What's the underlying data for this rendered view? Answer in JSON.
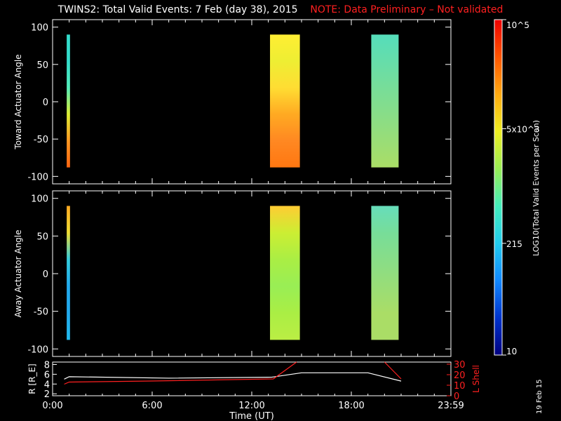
{
  "title": {
    "main": "TWINS2: Total Valid Events:  7 Feb (day  38), 2015",
    "note": "NOTE: Data Preliminary – Not validated"
  },
  "datestamp": "19 Feb 15",
  "colors": {
    "background": "#000000",
    "axes": "#ffffff",
    "note": "#ff2020",
    "lshell": "#ff2020",
    "radius": "#ffffff"
  },
  "chart_data": [
    {
      "type": "heatmap",
      "panel": "toward",
      "ylabel": "Toward Actuator Angle",
      "ylim": [
        -110,
        110
      ],
      "yticks": [
        "100",
        "50",
        "0",
        "-50",
        "-100"
      ],
      "xlim": [
        0,
        24
      ],
      "grid": false,
      "blocks": [
        {
          "t0": 0.85,
          "t1": 1.05,
          "angle_min": -88,
          "angle_max": 90,
          "colors_top_to_bottom": [
            "#33ddcc",
            "#33ddcc",
            "#55eebb",
            "#ddee33",
            "#ff9922",
            "#ff6611"
          ]
        },
        {
          "t0": 13.1,
          "t1": 14.9,
          "angle_min": -88,
          "angle_max": 90,
          "colors_top_to_bottom": [
            "#ffee33",
            "#eeee33",
            "#ffdd33",
            "#ffaa22",
            "#ff8822",
            "#ff7711"
          ]
        },
        {
          "t0": 19.2,
          "t1": 20.85,
          "angle_min": -88,
          "angle_max": 90,
          "colors_top_to_bottom": [
            "#55ddbb",
            "#66ddaa",
            "#77dd99",
            "#88dd88",
            "#99dd77",
            "#aadd66"
          ]
        }
      ]
    },
    {
      "type": "heatmap",
      "panel": "away",
      "ylabel": "Away Actuator Angle",
      "ylim": [
        -110,
        110
      ],
      "yticks": [
        "100",
        "50",
        "0",
        "-50",
        "-100"
      ],
      "xlim": [
        0,
        24
      ],
      "grid": false,
      "blocks": [
        {
          "t0": 0.85,
          "t1": 1.05,
          "angle_min": -88,
          "angle_max": 90,
          "colors_top_to_bottom": [
            "#ffaa22",
            "#eedd33",
            "#33ccdd",
            "#22aaee",
            "#22aaee",
            "#22bbee"
          ]
        },
        {
          "t0": 13.1,
          "t1": 14.9,
          "angle_min": -88,
          "angle_max": 90,
          "colors_top_to_bottom": [
            "#ffcc33",
            "#ccee33",
            "#aaee44",
            "#99ee55",
            "#aaee44",
            "#bbee44"
          ]
        },
        {
          "t0": 19.2,
          "t1": 20.85,
          "angle_min": -88,
          "angle_max": 90,
          "colors_top_to_bottom": [
            "#66ddbb",
            "#77dd99",
            "#88dd88",
            "#99dd77",
            "#aadd66",
            "#aadd66"
          ]
        }
      ]
    },
    {
      "type": "line",
      "panel": "ephemeris",
      "ylabel": "R [R_E]",
      "ylabel_right": "L Shell",
      "xlabel": "Time (UT)",
      "xticks": [
        "0:00",
        "6:00",
        "12:00",
        "18:00",
        "23:59"
      ],
      "xlim": [
        0,
        24
      ],
      "ylim": [
        1.6,
        8.5
      ],
      "yticks": [
        "8",
        "6",
        "4",
        "2"
      ],
      "y2lim": [
        0,
        32
      ],
      "y2ticks": [
        "30",
        "20",
        "10",
        "0"
      ],
      "series": [
        {
          "axis": "left",
          "color": "#ffffff",
          "x": [
            0.7,
            1.0,
            7.0,
            13.2,
            15.0,
            19.0,
            21.0
          ],
          "y": [
            5.0,
            5.5,
            5.2,
            5.4,
            6.3,
            6.3,
            4.6
          ]
        },
        {
          "axis": "right",
          "color": "#ff2020",
          "x": [
            0.7,
            1.0,
            6.0,
            13.3,
            14.7
          ],
          "y": [
            11,
            13,
            14,
            16,
            32
          ]
        },
        {
          "axis": "right",
          "color": "#ff2020",
          "x": [
            20.0,
            21.0
          ],
          "y": [
            32,
            16
          ]
        }
      ]
    },
    {
      "type": "colorbar",
      "label": "LOG10(Total Valid Events per Scan)",
      "scale": "log",
      "range": [
        10,
        100000
      ],
      "tick_labels": [
        "10",
        "215",
        "5x10^3",
        "10^5"
      ],
      "tick_values": [
        10,
        215,
        5000,
        100000
      ],
      "colors_bottom_to_top": [
        "#000080",
        "#0033cc",
        "#1188ff",
        "#22ccee",
        "#44eebb",
        "#99ee55",
        "#eeee22",
        "#ffaa11",
        "#ff5500",
        "#ee0000"
      ]
    }
  ]
}
